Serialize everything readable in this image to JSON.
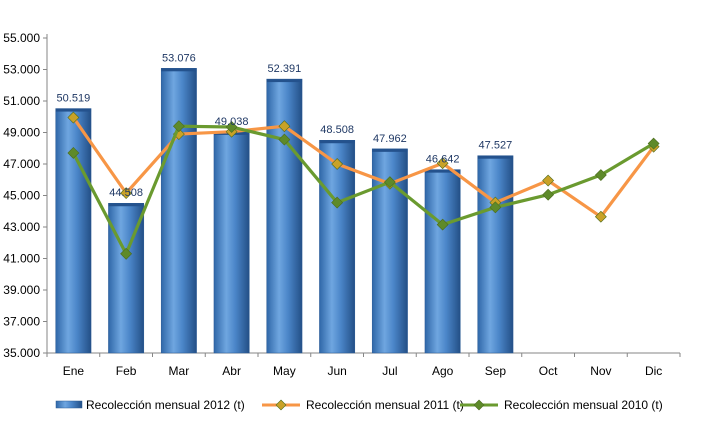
{
  "chart_data": {
    "type": "bar",
    "categories": [
      "Ene",
      "Feb",
      "Mar",
      "Abr",
      "May",
      "Jun",
      "Jul",
      "Ago",
      "Sep",
      "Oct",
      "Nov",
      "Dic"
    ],
    "y_tick_labels": [
      "35.000",
      "37.000",
      "39.000",
      "41.000",
      "43.000",
      "45.000",
      "47.000",
      "49.000",
      "51.000",
      "53.000",
      "55.000"
    ],
    "ylim": [
      35000,
      55000
    ],
    "ytick_step": 2000,
    "grid": false,
    "legend_position": "bottom",
    "series": [
      {
        "name": "Recolección mensual 2012 (t)",
        "kind": "bar",
        "color": "#4a86c8",
        "values": [
          50519,
          44508,
          53076,
          49038,
          52391,
          48508,
          47962,
          46642,
          47527,
          null,
          null,
          null
        ],
        "labels": [
          "50.519",
          "44.508",
          "53.076",
          "49.038",
          "52.391",
          "48.508",
          "47.962",
          "46.642",
          "47.527",
          "",
          "",
          ""
        ]
      },
      {
        "name": "Recolección mensual 2011 (t)",
        "kind": "line",
        "color": "#f79646",
        "marker_color": "#c9a227",
        "values": [
          49950,
          45150,
          48900,
          49050,
          49400,
          47000,
          45750,
          47050,
          44550,
          45950,
          43650,
          48100
        ]
      },
      {
        "name": "Recolección mensual 2010 (t)",
        "kind": "line",
        "color": "#6a9a2f",
        "marker_color": "#5e8a2a",
        "values": [
          47700,
          41300,
          49400,
          49350,
          48550,
          44550,
          45850,
          43150,
          44250,
          45050,
          46300,
          48300
        ]
      }
    ]
  }
}
